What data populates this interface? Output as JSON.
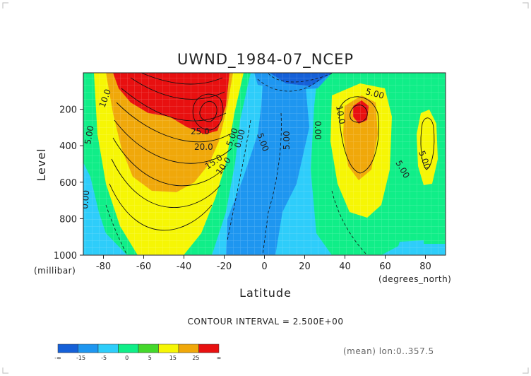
{
  "title": "UWND_1984-07_NCEP",
  "x_axis": {
    "label": "Latitude",
    "unit": "(degrees_north)",
    "ticks": [
      "-80",
      "-60",
      "-40",
      "-20",
      "0",
      "20",
      "40",
      "60",
      "80"
    ]
  },
  "y_axis": {
    "label": "Level",
    "unit": "(millibar)",
    "ticks": [
      "200",
      "400",
      "600",
      "800",
      "1000"
    ]
  },
  "contour_interval_text": "CONTOUR INTERVAL = 2.500E+00",
  "footnote": "(mean) lon:0..357.5",
  "colorbar": {
    "labels": [
      "-∞",
      "-15",
      "-5",
      "0",
      "5",
      "15",
      "25",
      "∞"
    ],
    "colors": [
      "#1560d8",
      "#1e96f0",
      "#2ecdfa",
      "#10ee88",
      "#44d82c",
      "#f6f605",
      "#f0a80a",
      "#e81010"
    ]
  },
  "contour_labels": [
    "10.0",
    "5.00",
    "0.00",
    "25.0",
    "20.0",
    "15.0",
    "10.0",
    "5.00",
    "0.00",
    "5.00",
    "5.00",
    "5.00",
    "10.0",
    "0.00",
    "5.00",
    "5.00"
  ],
  "chart_data": {
    "type": "heatmap",
    "title": "UWND_1984-07_NCEP",
    "xlabel": "Latitude",
    "ylabel": "Level",
    "x_unit": "degrees_north",
    "y_unit": "millibar",
    "xlim": [
      -90,
      90
    ],
    "ylim": [
      1000,
      0
    ],
    "y_reversed": true,
    "contour_interval": 2.5,
    "fields": [
      {
        "kind": "jet_max",
        "lat": -30,
        "p": 210,
        "value": 27.5
      },
      {
        "kind": "jet_max",
        "lat": -55,
        "p": 80,
        "value": 32
      },
      {
        "kind": "jet_max",
        "lat": 46,
        "p": 210,
        "value": 17.5
      },
      {
        "kind": "jet_max",
        "lat": 82,
        "p": 270,
        "value": 7.5
      },
      {
        "kind": "easterly_min",
        "lat": 15,
        "p": 60,
        "value": -15
      },
      {
        "kind": "easterly_band",
        "lat_range": [
          -15,
          25
        ],
        "p_range": [
          100,
          1000
        ],
        "value": -5
      }
    ],
    "legend": {
      "placement": "bottom-left",
      "bins": [
        "-∞",
        "-15",
        "-5",
        "0",
        "5",
        "15",
        "25",
        "∞"
      ]
    },
    "grid": false
  }
}
